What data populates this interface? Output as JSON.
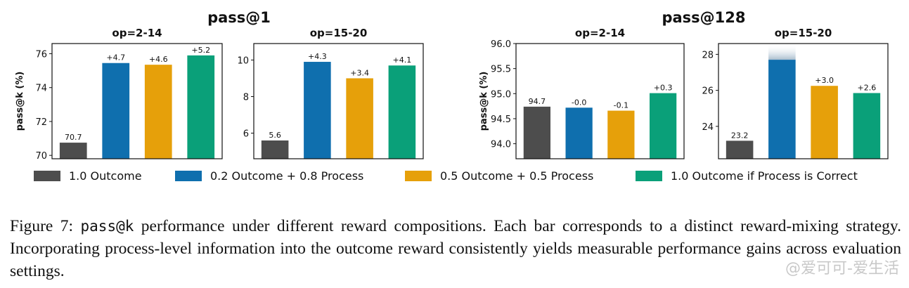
{
  "colors": {
    "outcome": "#4d4d4d",
    "mix_02_08": "#0f6fae",
    "mix_05_05": "#e6a00a",
    "process_correct": "#0aa079"
  },
  "group_titles": [
    "pass@1",
    "pass@128"
  ],
  "chart_data": [
    {
      "type": "bar",
      "group": "pass@1",
      "title": "op=2-14",
      "ylabel": "pass@k (%)",
      "ylim": [
        69.8,
        76.6
      ],
      "yticks": [
        70,
        72,
        74,
        76
      ],
      "yticklabels": [
        "70",
        "72",
        "74",
        "76"
      ],
      "values": [
        70.75,
        75.45,
        75.35,
        75.9
      ],
      "labels": [
        "70.7",
        "+4.7",
        "+4.6",
        "+5.2"
      ]
    },
    {
      "type": "bar",
      "group": "pass@1",
      "title": "op=15-20",
      "ylabel": "",
      "ylim": [
        4.6,
        10.9
      ],
      "yticks": [
        6,
        8,
        10
      ],
      "yticklabels": [
        "6",
        "8",
        "10"
      ],
      "values": [
        5.6,
        9.9,
        9.0,
        9.7
      ],
      "labels": [
        "5.6",
        "+4.3",
        "+3.4",
        "+4.1"
      ]
    },
    {
      "type": "bar",
      "group": "pass@128",
      "title": "op=2-14",
      "ylabel": "pass@k (%)",
      "ylim": [
        93.7,
        96.0
      ],
      "yticks": [
        94.0,
        94.5,
        95.0,
        95.5,
        96.0
      ],
      "yticklabels": [
        "94.0",
        "94.5",
        "95.0",
        "95.5",
        "96.0"
      ],
      "values": [
        94.74,
        94.72,
        94.66,
        95.01
      ],
      "labels": [
        "94.7",
        "-0.0",
        "-0.1",
        "+0.3"
      ]
    },
    {
      "type": "bar",
      "group": "pass@128",
      "title": "op=15-20",
      "ylabel": "",
      "ylim": [
        22.2,
        28.6
      ],
      "yticks": [
        24,
        26,
        28
      ],
      "yticklabels": [
        "24",
        "26",
        "28"
      ],
      "values": [
        23.2,
        27.7,
        26.25,
        25.85
      ],
      "labels": [
        "23.2",
        "",
        "+3.0",
        "+2.6"
      ]
    }
  ],
  "legend": [
    "1.0 Outcome",
    "0.2 Outcome + 0.8 Process",
    "0.5 Outcome + 0.5 Process",
    "1.0 Outcome if Process is Correct"
  ],
  "caption": {
    "prefix": "Figure 7: ",
    "code": "pass@k",
    "text": " performance under different reward compositions. Each bar corresponds to a distinct reward-mixing strategy. Incorporating process-level information into the outcome reward consistently yields measurable performance gains across evaluation settings."
  },
  "watermark": "@爱可可-爱生活"
}
